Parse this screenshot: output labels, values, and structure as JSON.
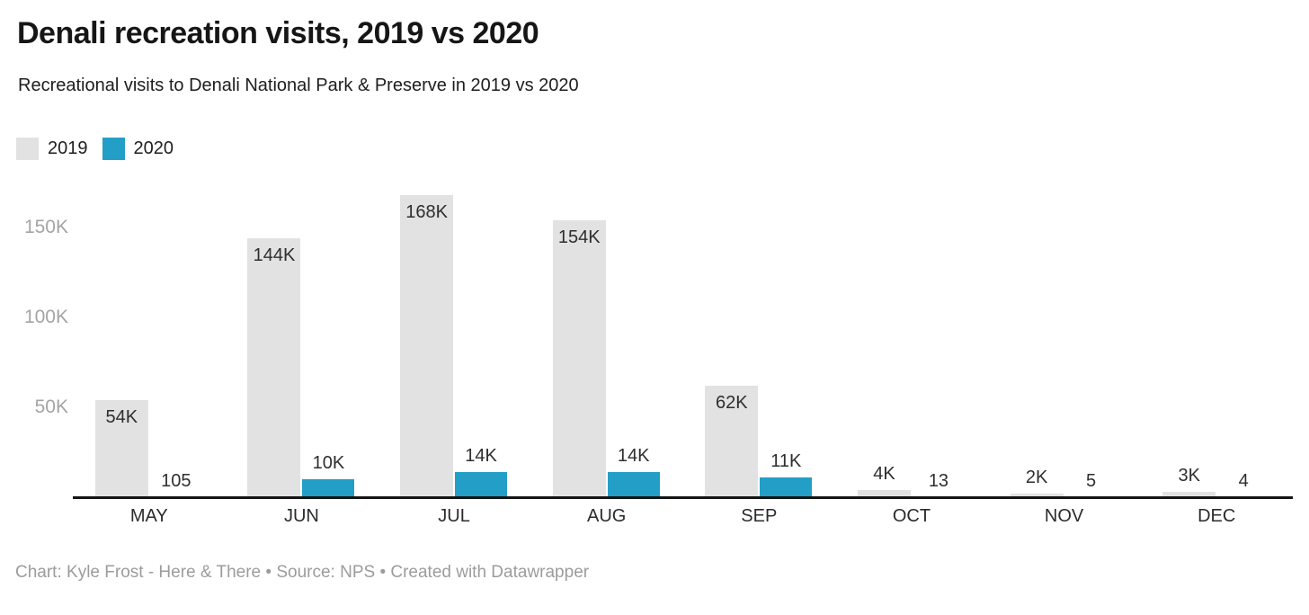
{
  "header": {
    "title": "Denali recreation visits, 2019 vs 2020",
    "subtitle": "Recreational visits to Denali National Park & Preserve in 2019 vs 2020"
  },
  "legend": {
    "items": [
      {
        "label": "2019",
        "color": "#e2e2e2"
      },
      {
        "label": "2020",
        "color": "#239ec6"
      }
    ]
  },
  "chart_data": {
    "type": "bar",
    "title": "Denali recreation visits, 2019 vs 2020",
    "subtitle": "Recreational visits to Denali National Park & Preserve in 2019 vs 2020",
    "categories": [
      "MAY",
      "JUN",
      "JUL",
      "AUG",
      "SEP",
      "OCT",
      "NOV",
      "DEC"
    ],
    "series": [
      {
        "name": "2019",
        "color": "#e2e2e2",
        "values": [
          54000,
          144000,
          168000,
          154000,
          62000,
          4000,
          2000,
          3000
        ],
        "labels": [
          "54K",
          "144K",
          "168K",
          "154K",
          "62K",
          "4K",
          "2K",
          "3K"
        ]
      },
      {
        "name": "2020",
        "color": "#239ec6",
        "values": [
          105,
          10000,
          14000,
          14000,
          11000,
          13,
          5,
          4
        ],
        "labels": [
          "105",
          "10K",
          "14K",
          "14K",
          "11K",
          "13",
          "5",
          "4"
        ]
      }
    ],
    "yticks": [
      {
        "label": "150K",
        "value": 150000
      },
      {
        "label": "100K",
        "value": 100000
      },
      {
        "label": "50K",
        "value": 50000
      }
    ],
    "ylim": [
      0,
      170000
    ],
    "grid": "none",
    "legend_position": "top-left",
    "axis_line_color": "#141414"
  },
  "footer": {
    "text": "Chart: Kyle Frost - Here & There • Source: NPS • Created with Datawrapper"
  }
}
